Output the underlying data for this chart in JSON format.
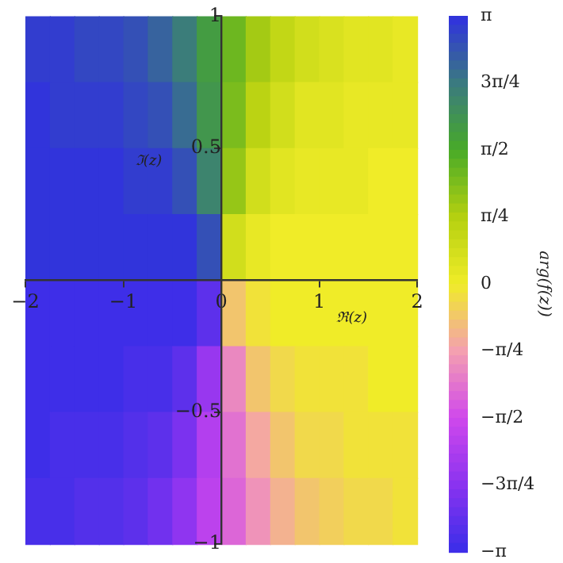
{
  "chart_data": {
    "type": "heatmap",
    "xlabel": "ℜ(z)",
    "ylabel": "ℑ(z)",
    "clabel": "arg(f(z))",
    "xlim": [
      -2,
      2
    ],
    "ylim": [
      -1,
      1
    ],
    "xticks": [
      -2,
      -1,
      0,
      1,
      2
    ],
    "yticks": [
      -1,
      -0.5,
      0.5,
      1
    ],
    "clim": [
      -3.1416,
      3.1416
    ],
    "cticks": [
      {
        "value": -3.1416,
        "label": "−π"
      },
      {
        "value": -2.3562,
        "label": "−3π/4"
      },
      {
        "value": -1.5708,
        "label": "−π/2"
      },
      {
        "value": -0.7854,
        "label": "−π/4"
      },
      {
        "value": 0,
        "label": "0"
      },
      {
        "value": 0.7854,
        "label": "π/4"
      },
      {
        "value": 1.5708,
        "label": "π/2"
      },
      {
        "value": 2.3562,
        "label": "3π/4"
      },
      {
        "value": 3.1416,
        "label": "π"
      }
    ],
    "cells": [
      [
        3.0,
        3.0,
        2.9,
        2.9,
        2.8,
        2.6,
        2.3,
        1.8,
        1.3,
        0.9,
        0.6,
        0.4,
        0.3,
        0.2,
        0.2,
        0.1
      ],
      [
        3.1,
        3.0,
        3.0,
        3.0,
        2.9,
        2.8,
        2.5,
        1.9,
        1.2,
        0.7,
        0.4,
        0.2,
        0.2,
        0.1,
        0.1,
        0.1
      ],
      [
        3.1,
        3.1,
        3.1,
        3.1,
        3.0,
        3.0,
        2.8,
        2.2,
        1.0,
        0.4,
        0.2,
        0.1,
        0.1,
        0.1,
        0.0,
        0.0
      ],
      [
        3.1,
        3.1,
        3.1,
        3.1,
        3.1,
        3.1,
        3.1,
        2.8,
        0.4,
        0.1,
        0.0,
        0.0,
        0.0,
        0.0,
        0.0,
        0.0
      ],
      [
        -3.1,
        -3.1,
        -3.1,
        -3.1,
        -3.1,
        -3.1,
        -3.1,
        -2.8,
        -0.4,
        -0.1,
        0.0,
        0.0,
        0.0,
        0.0,
        0.0,
        0.0
      ],
      [
        -3.1,
        -3.1,
        -3.1,
        -3.1,
        -3.0,
        -3.0,
        -2.8,
        -2.2,
        -1.0,
        -0.4,
        -0.2,
        -0.1,
        -0.1,
        -0.1,
        0.0,
        0.0
      ],
      [
        -3.1,
        -3.0,
        -3.0,
        -3.0,
        -2.9,
        -2.8,
        -2.5,
        -1.9,
        -1.2,
        -0.7,
        -0.4,
        -0.2,
        -0.2,
        -0.1,
        -0.1,
        -0.1
      ],
      [
        -3.0,
        -3.0,
        -2.9,
        -2.9,
        -2.8,
        -2.6,
        -2.3,
        -1.8,
        -1.3,
        -0.9,
        -0.6,
        -0.4,
        -0.3,
        -0.2,
        -0.2,
        -0.1
      ]
    ]
  }
}
